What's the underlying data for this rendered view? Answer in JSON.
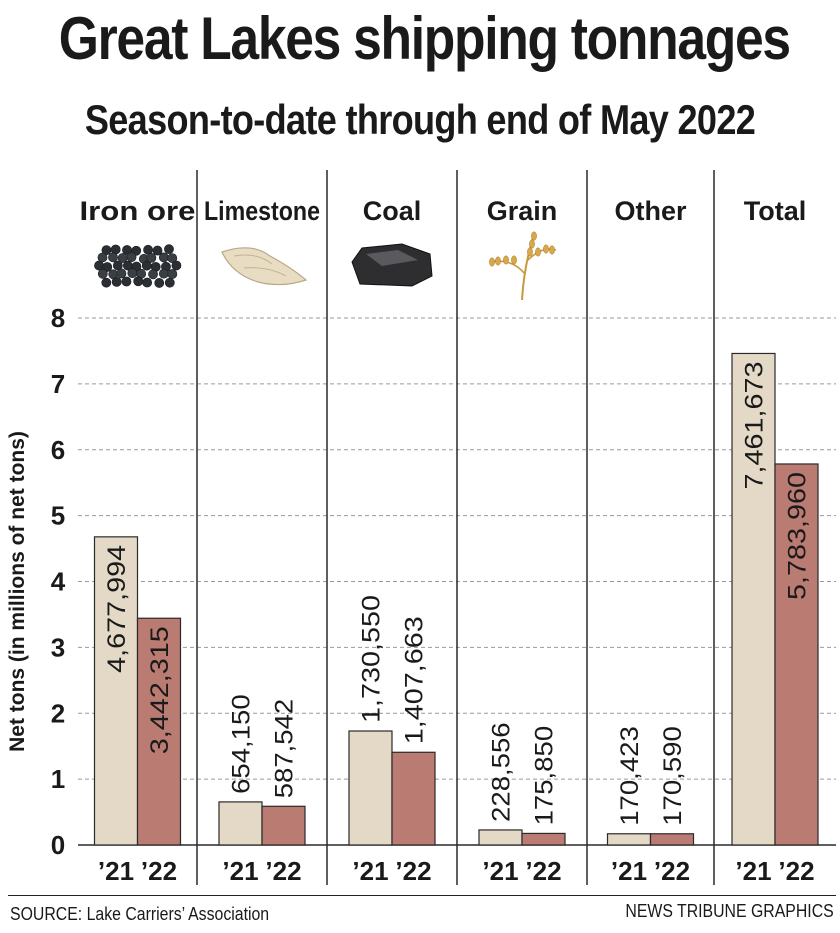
{
  "header": {
    "title": "Great Lakes shipping tonnages",
    "subtitle": "Season-to-date through end of May 2022"
  },
  "footer": {
    "source": "SOURCE: Lake Carriers’ Association",
    "credit": "NEWS TRIBUNE GRAPHICS"
  },
  "chart_data": {
    "type": "bar",
    "title": "Great Lakes shipping tonnages",
    "subtitle": "Season-to-date through end of May 2022",
    "ylabel": "Net tons (in millions of net tons)",
    "ylim": [
      0,
      8
    ],
    "yticks": [
      0,
      1,
      2,
      3,
      4,
      5,
      6,
      7,
      8
    ],
    "grid": true,
    "categories": [
      "Iron ore",
      "Limestone",
      "Coal",
      "Grain",
      "Other",
      "Total"
    ],
    "category_icons": [
      "iron-ore-pellets-icon",
      "limestone-rock-icon",
      "coal-lump-icon",
      "grain-stalk-icon",
      "",
      ""
    ],
    "series": [
      {
        "name": "’21",
        "color": "#e3d9c6",
        "values": [
          4677994,
          654150,
          1730550,
          228556,
          170423,
          7461673
        ],
        "labels": [
          "4,677,994",
          "654,150",
          "1,730,550",
          "228,556",
          "170,423",
          "7,461,673"
        ]
      },
      {
        "name": "’22",
        "color": "#b97b72",
        "values": [
          3442315,
          587542,
          1407663,
          175850,
          170590,
          5783960
        ],
        "labels": [
          "3,442,315",
          "587,542",
          "1,407,663",
          "175,850",
          "170,590",
          "5,783,960"
        ]
      }
    ],
    "colors": {
      "bar_2021": "#e3d9c6",
      "bar_2022": "#b97b72",
      "bar_stroke": "#2a2a2a"
    }
  }
}
